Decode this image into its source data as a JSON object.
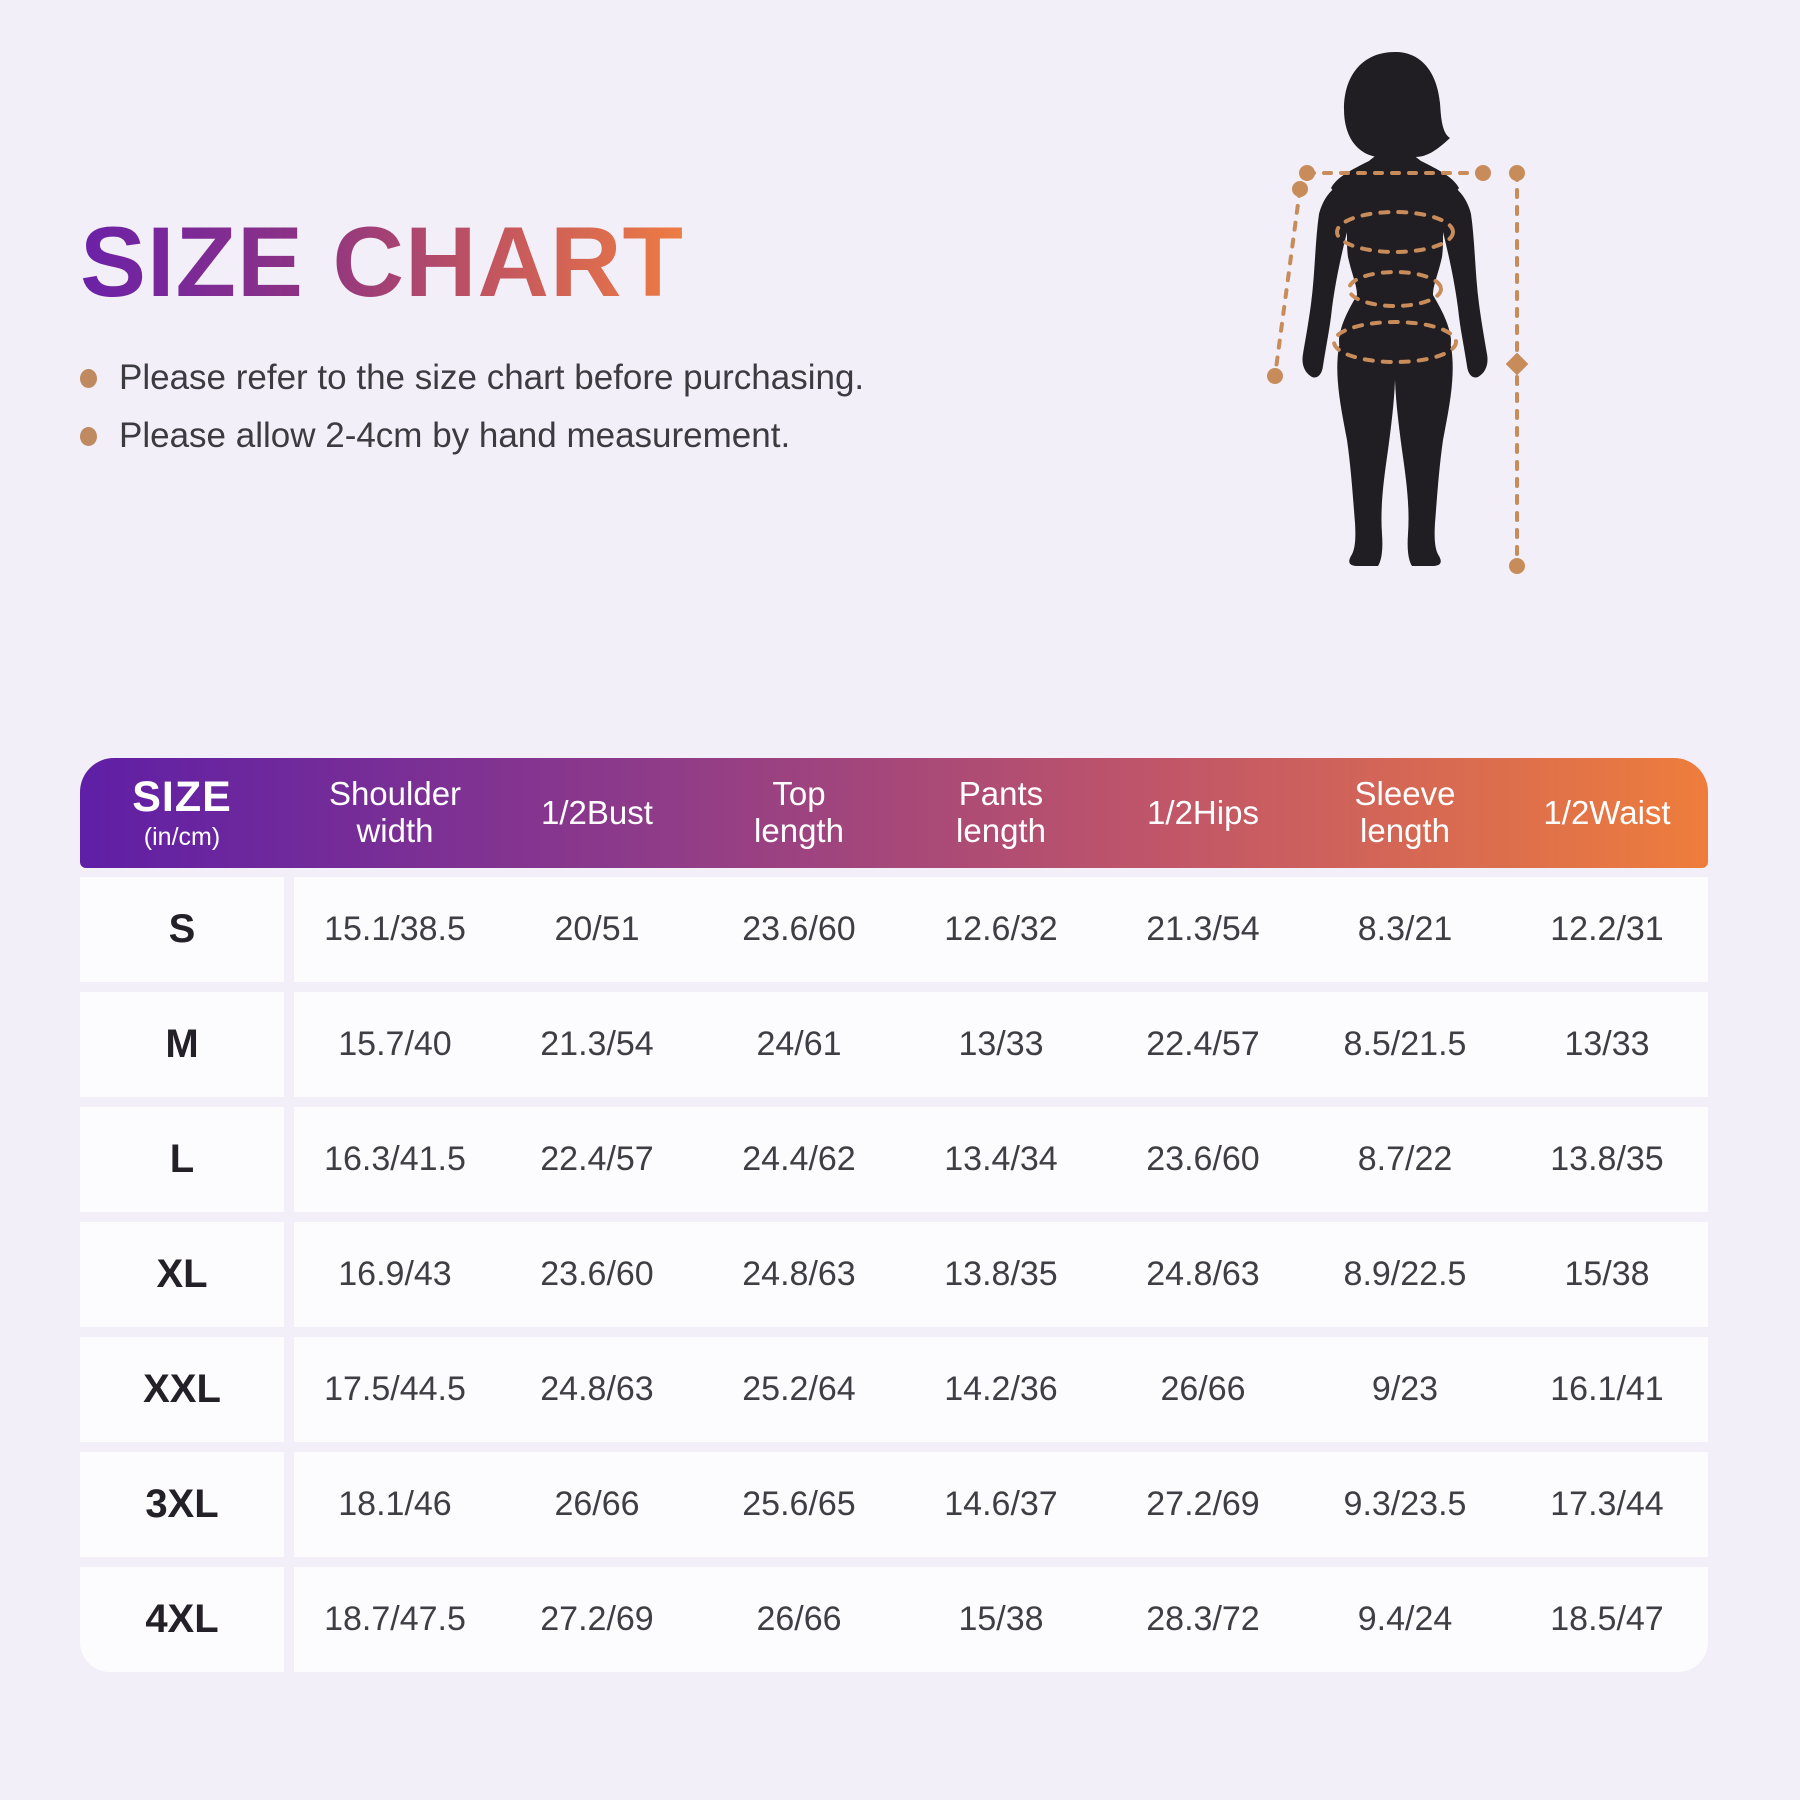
{
  "header": {
    "title": "SIZE CHART",
    "notes": [
      "Please refer to the size chart before purchasing.",
      "Please allow 2-4cm by hand measurement."
    ]
  },
  "figure": {
    "description": "female body silhouette with measurement guides",
    "silhouette_color": "#201d23",
    "measure_line_color": "#c78c5a"
  },
  "chart_data": {
    "type": "table",
    "title": "SIZE CHART",
    "unit_note": "(in/cm)",
    "header_gradient": [
      "#5f1fa6",
      "#ee7d3c"
    ],
    "columns": [
      "SIZE",
      "Shoulder width",
      "1/2Bust",
      "Top length",
      "Pants length",
      "1/2Hips",
      "Sleeve length",
      "1/2Waist"
    ],
    "rows": [
      {
        "size": "S",
        "values": [
          "15.1/38.5",
          "20/51",
          "23.6/60",
          "12.6/32",
          "21.3/54",
          "8.3/21",
          "12.2/31"
        ]
      },
      {
        "size": "M",
        "values": [
          "15.7/40",
          "21.3/54",
          "24/61",
          "13/33",
          "22.4/57",
          "8.5/21.5",
          "13/33"
        ]
      },
      {
        "size": "L",
        "values": [
          "16.3/41.5",
          "22.4/57",
          "24.4/62",
          "13.4/34",
          "23.6/60",
          "8.7/22",
          "13.8/35"
        ]
      },
      {
        "size": "XL",
        "values": [
          "16.9/43",
          "23.6/60",
          "24.8/63",
          "13.8/35",
          "24.8/63",
          "8.9/22.5",
          "15/38"
        ]
      },
      {
        "size": "XXL",
        "values": [
          "17.5/44.5",
          "24.8/63",
          "25.2/64",
          "14.2/36",
          "26/66",
          "9/23",
          "16.1/41"
        ]
      },
      {
        "size": "3XL",
        "values": [
          "18.1/46",
          "26/66",
          "25.6/65",
          "14.6/37",
          "27.2/69",
          "9.3/23.5",
          "17.3/44"
        ]
      },
      {
        "size": "4XL",
        "values": [
          "18.7/47.5",
          "27.2/69",
          "26/66",
          "15/38",
          "28.3/72",
          "9.4/24",
          "18.5/47"
        ]
      }
    ]
  }
}
